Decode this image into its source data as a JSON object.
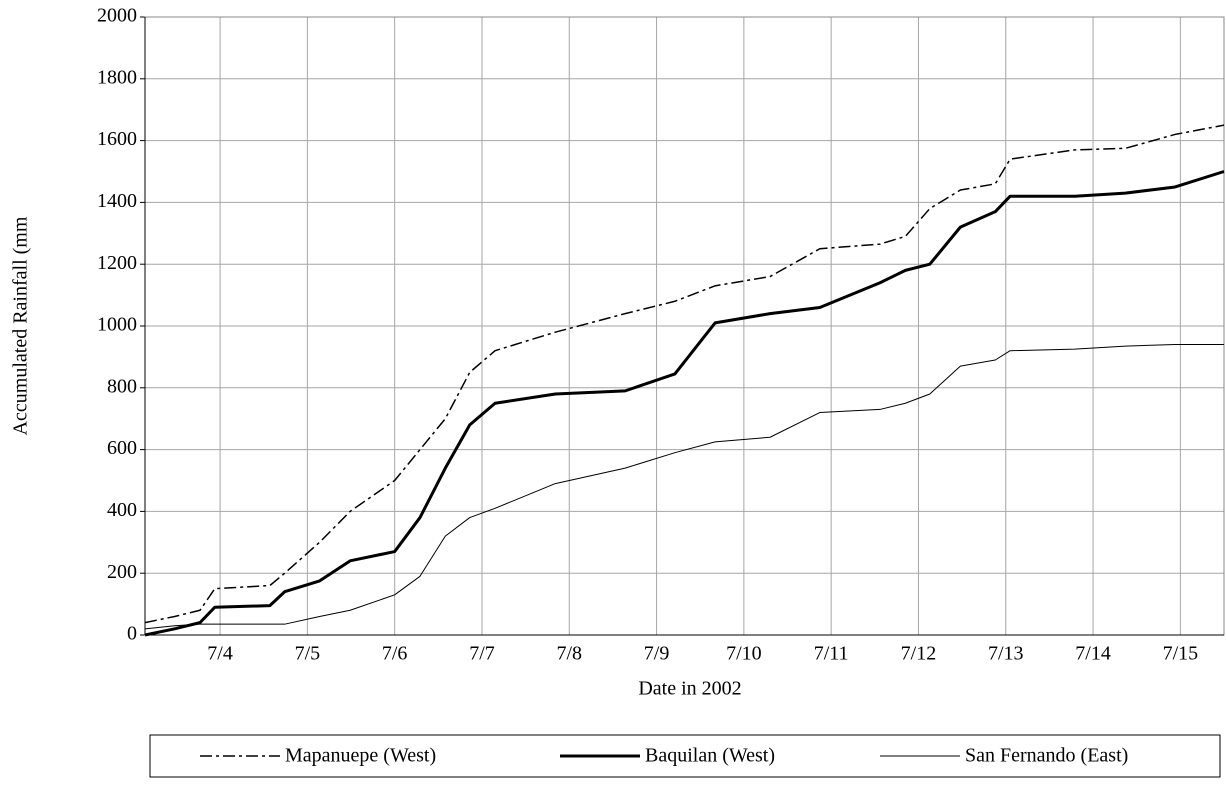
{
  "chart_data": {
    "type": "line",
    "y_label": "Accumulated Rainfall (mm",
    "x_label": "Date  in 2002",
    "xlim": [
      3.64,
      16.0
    ],
    "xticks": [
      {
        "value": 4.5,
        "label": "7/4"
      },
      {
        "value": 5.5,
        "label": "7/5"
      },
      {
        "value": 6.5,
        "label": "7/6"
      },
      {
        "value": 7.5,
        "label": "7/7"
      },
      {
        "value": 8.5,
        "label": "7/8"
      },
      {
        "value": 9.5,
        "label": "7/9"
      },
      {
        "value": 10.5,
        "label": "7/10"
      },
      {
        "value": 11.5,
        "label": "7/11"
      },
      {
        "value": 12.5,
        "label": "7/12"
      },
      {
        "value": 13.5,
        "label": "7/13"
      },
      {
        "value": 14.5,
        "label": "7/14"
      },
      {
        "value": 15.5,
        "label": "7/15"
      }
    ],
    "ylim": [
      0,
      2000
    ],
    "yticks": [
      0,
      200,
      400,
      600,
      800,
      1000,
      1200,
      1400,
      1600,
      1800,
      2000
    ],
    "grid": true,
    "legend": "bottom",
    "x": [
      3.64,
      3.98,
      4.27,
      4.44,
      5.07,
      5.24,
      5.64,
      5.99,
      6.5,
      6.79,
      7.08,
      7.36,
      7.65,
      8.34,
      9.14,
      9.71,
      10.17,
      10.8,
      11.37,
      12.06,
      12.35,
      12.63,
      12.98,
      13.38,
      13.55,
      14.29,
      14.87,
      15.44,
      16.0
    ],
    "series": [
      {
        "name": "Mapanuepe (West)",
        "color": "#000000",
        "line_style": "dashdot",
        "line_width": 1.5,
        "values": [
          40,
          60,
          80,
          150,
          160,
          200,
          300,
          400,
          500,
          600,
          700,
          850,
          920,
          980,
          1040,
          1080,
          1130,
          1160,
          1250,
          1265,
          1290,
          1380,
          1440,
          1460,
          1540,
          1570,
          1575,
          1620,
          1650
        ]
      },
      {
        "name": "Baquilan (West)",
        "color": "#000000",
        "line_style": "solid",
        "line_width": 3,
        "values": [
          0,
          20,
          40,
          90,
          95,
          140,
          175,
          240,
          270,
          380,
          540,
          680,
          750,
          780,
          790,
          845,
          1010,
          1040,
          1060,
          1140,
          1180,
          1200,
          1320,
          1370,
          1420,
          1420,
          1430,
          1450,
          1500
        ]
      },
      {
        "name": "San Fernando (East)",
        "color": "#000000",
        "line_style": "solid",
        "line_width": 1,
        "values": [
          20,
          30,
          35,
          35,
          35,
          35,
          60,
          80,
          130,
          190,
          320,
          380,
          410,
          490,
          540,
          590,
          625,
          640,
          720,
          730,
          750,
          780,
          870,
          890,
          920,
          925,
          935,
          940,
          940
        ]
      }
    ]
  }
}
